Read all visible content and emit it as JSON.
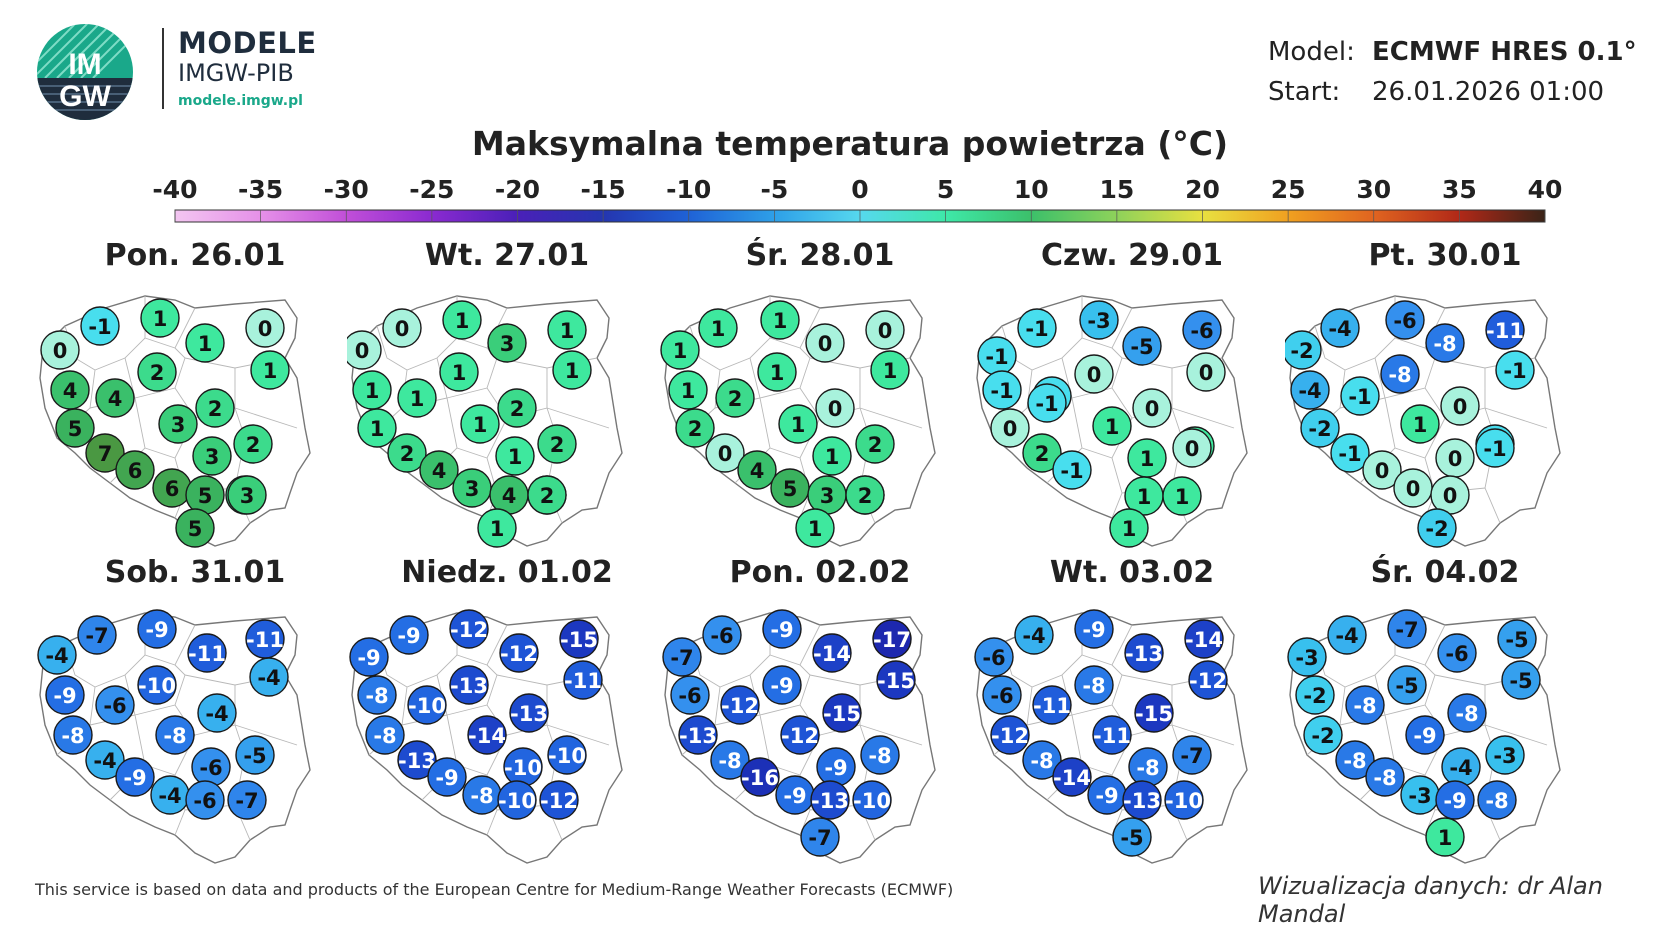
{
  "header": {
    "brand_title": "MODELE",
    "brand_subtitle": "IMGW-PIB",
    "brand_url": "modele.imgw.pl",
    "logo_text_top": "IM",
    "logo_text_bottom": "GW",
    "model_label": "Model:",
    "model_value": "ECMWF HRES 0.1°",
    "start_label": "Start:",
    "start_value": "26.01.2026 01:00"
  },
  "title": "Maksymalna temperatura powietrza (°C)",
  "scale": {
    "ticks": [
      "-40",
      "-35",
      "-30",
      "-25",
      "-20",
      "-15",
      "-10",
      "-5",
      "0",
      "5",
      "10",
      "15",
      "20",
      "25",
      "30",
      "35",
      "40"
    ],
    "range": [
      -40,
      40
    ],
    "colors": [
      "#f3c6f1",
      "#e590e8",
      "#c14fd8",
      "#8a2ad0",
      "#4a20b8",
      "#2436b0",
      "#1f62d6",
      "#2ea0e8",
      "#56d8ee",
      "#3ee8a8",
      "#3cc06a",
      "#8fd25a",
      "#e8e040",
      "#f0a020",
      "#e06420",
      "#b02818",
      "#3a2418"
    ]
  },
  "map_stations": [
    "p01",
    "p02",
    "p03",
    "p04",
    "p05",
    "p06",
    "p07",
    "p08",
    "p09",
    "p10",
    "p11",
    "p12",
    "p13",
    "p14",
    "p15",
    "p16",
    "p17",
    "p18",
    "p19",
    "p20",
    "p21",
    "p22",
    "p23",
    "p24"
  ],
  "days": [
    {
      "label": "Pon. 26.01",
      "values": [
        0,
        -1,
        1,
        1,
        0,
        1,
        4,
        4,
        2,
        2,
        5,
        7,
        3,
        6,
        6,
        2,
        3,
        2,
        5,
        5,
        3,
        null,
        null,
        null
      ]
    },
    {
      "label": "Wt. 27.01",
      "values": [
        0,
        0,
        1,
        3,
        1,
        1,
        1,
        1,
        1,
        2,
        1,
        2,
        1,
        4,
        3,
        2,
        1,
        2,
        4,
        1,
        2,
        null,
        null,
        null
      ]
    },
    {
      "label": "Śr. 28.01",
      "values": [
        1,
        1,
        1,
        0,
        0,
        1,
        1,
        2,
        1,
        0,
        2,
        0,
        1,
        4,
        5,
        2,
        1,
        5,
        3,
        1,
        2,
        null,
        null,
        null
      ]
    },
    {
      "label": "Czw. 29.01",
      "values": [
        -1,
        -1,
        -3,
        -5,
        -6,
        0,
        -1,
        -1,
        0,
        0,
        0,
        -1,
        1,
        2,
        -1,
        1,
        1,
        0,
        1,
        1,
        1,
        null,
        null,
        null
      ]
    },
    {
      "label": "Pt. 30.01",
      "values": [
        -2,
        -4,
        -6,
        -8,
        -11,
        -1,
        -4,
        -1,
        -8,
        0,
        -2,
        -1,
        1,
        0,
        0,
        -1,
        0,
        -1,
        0,
        -2,
        null,
        null,
        null,
        null
      ]
    },
    {
      "label": "Sob. 31.01",
      "values": [
        -4,
        -7,
        -9,
        -11,
        -11,
        -4,
        -9,
        -6,
        -10,
        -4,
        -8,
        -4,
        -8,
        -9,
        -4,
        -5,
        -6,
        -7,
        -6,
        null,
        null,
        null,
        null,
        null
      ]
    },
    {
      "label": "Niedz. 01.02",
      "values": [
        -9,
        -9,
        -12,
        -12,
        -15,
        -11,
        -8,
        -10,
        -13,
        -13,
        -8,
        -13,
        -14,
        -9,
        -8,
        -10,
        -10,
        -12,
        -10,
        null,
        null,
        null,
        null,
        null
      ]
    },
    {
      "label": "Pon. 02.02",
      "values": [
        -7,
        -6,
        -9,
        -14,
        -17,
        -15,
        -6,
        -12,
        -9,
        -15,
        -13,
        -8,
        -12,
        -16,
        -9,
        -8,
        -9,
        -10,
        -13,
        -7,
        null,
        null,
        null,
        null
      ]
    },
    {
      "label": "Wt. 03.02",
      "values": [
        -6,
        -4,
        -9,
        -13,
        -14,
        -12,
        -6,
        -11,
        -8,
        -15,
        -12,
        -8,
        -11,
        -14,
        -9,
        -7,
        -8,
        -10,
        -13,
        -5,
        null,
        null,
        null,
        null
      ]
    },
    {
      "label": "Śr. 04.02",
      "values": [
        -3,
        -4,
        -7,
        -6,
        -5,
        -5,
        -2,
        -8,
        -5,
        -8,
        -2,
        -8,
        -9,
        -8,
        -3,
        -3,
        -4,
        -8,
        -9,
        1,
        null,
        null,
        null,
        null
      ]
    }
  ],
  "footer": {
    "source": "This service is based on data and products of the European Centre for Medium-Range Weather Forecasts (ECMWF)",
    "credit": "Wizualizacja danych: dr Alan Mandal"
  }
}
